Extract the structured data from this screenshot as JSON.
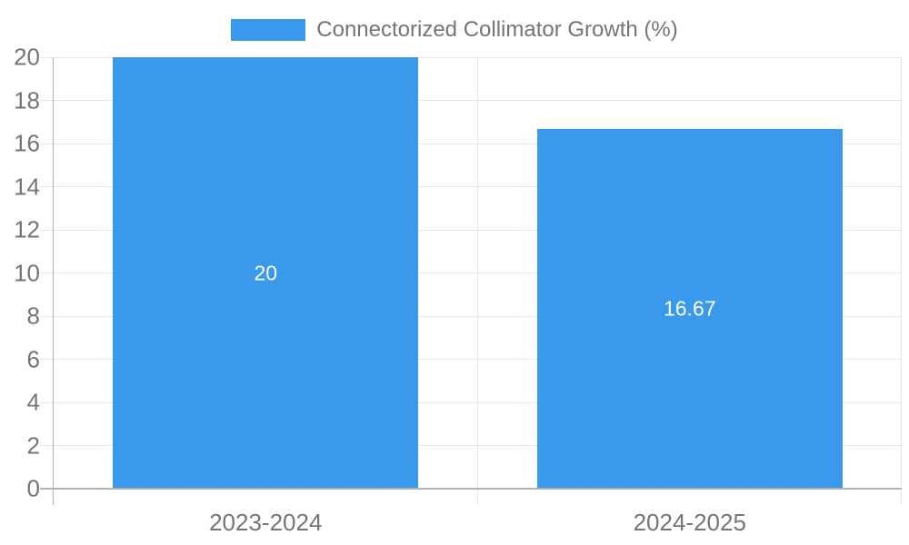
{
  "chart_data": {
    "type": "bar",
    "title": "",
    "legend": {
      "label": "Connectorized Collimator Growth (%)",
      "position": "top"
    },
    "categories": [
      "2023-2024",
      "2024-2025"
    ],
    "series": [
      {
        "name": "Connectorized Collimator Growth (%)",
        "values": [
          20,
          16.67
        ]
      }
    ],
    "data_labels": [
      "20",
      "16.67"
    ],
    "xlabel": "",
    "ylabel": "",
    "ylim": [
      0,
      20
    ],
    "yticks": [
      0,
      2,
      4,
      6,
      8,
      10,
      12,
      14,
      16,
      18,
      20
    ],
    "grid": true,
    "legend_position": "top",
    "colors": {
      "bar": "#3B99EC",
      "data_label_text": "#FFFFFF",
      "axis_text": "#757575",
      "legend_text": "#757575",
      "gridline": "#E6E6E6",
      "axis_line": "#B3B3B3",
      "background": "#FFFFFF"
    }
  }
}
